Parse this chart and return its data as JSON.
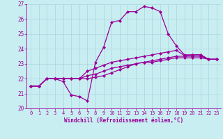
{
  "xlabel": "Windchill (Refroidissement éolien,°C)",
  "xlim": [
    -0.5,
    23.5
  ],
  "ylim": [
    20,
    27
  ],
  "xticks": [
    0,
    1,
    2,
    3,
    4,
    5,
    6,
    7,
    8,
    9,
    10,
    11,
    12,
    13,
    14,
    15,
    16,
    17,
    18,
    19,
    20,
    21,
    22,
    23
  ],
  "yticks": [
    20,
    21,
    22,
    23,
    24,
    25,
    26,
    27
  ],
  "bg_color": "#c9eef1",
  "line_color": "#990099",
  "grid_color": "#aad4dd",
  "series": [
    [
      21.5,
      21.5,
      22.0,
      22.0,
      21.8,
      20.9,
      20.8,
      20.5,
      23.1,
      24.1,
      25.8,
      25.9,
      26.5,
      26.5,
      26.85,
      26.75,
      26.5,
      25.0,
      24.2,
      23.6,
      23.6,
      23.6,
      23.3,
      23.3
    ],
    [
      21.5,
      21.5,
      22.0,
      22.0,
      22.0,
      22.0,
      22.0,
      22.5,
      22.7,
      22.9,
      23.1,
      23.2,
      23.3,
      23.4,
      23.5,
      23.6,
      23.7,
      23.8,
      23.9,
      23.55,
      23.6,
      23.6,
      23.3,
      23.3
    ],
    [
      21.5,
      21.5,
      22.0,
      22.0,
      22.0,
      22.0,
      22.0,
      22.2,
      22.3,
      22.5,
      22.7,
      22.8,
      22.9,
      23.0,
      23.1,
      23.2,
      23.3,
      23.4,
      23.5,
      23.5,
      23.5,
      23.5,
      23.3,
      23.3
    ],
    [
      21.5,
      21.5,
      22.0,
      22.0,
      22.0,
      22.0,
      22.0,
      22.0,
      22.1,
      22.2,
      22.4,
      22.6,
      22.8,
      23.0,
      23.1,
      23.1,
      23.2,
      23.3,
      23.4,
      23.4,
      23.4,
      23.4,
      23.3,
      23.3
    ]
  ]
}
